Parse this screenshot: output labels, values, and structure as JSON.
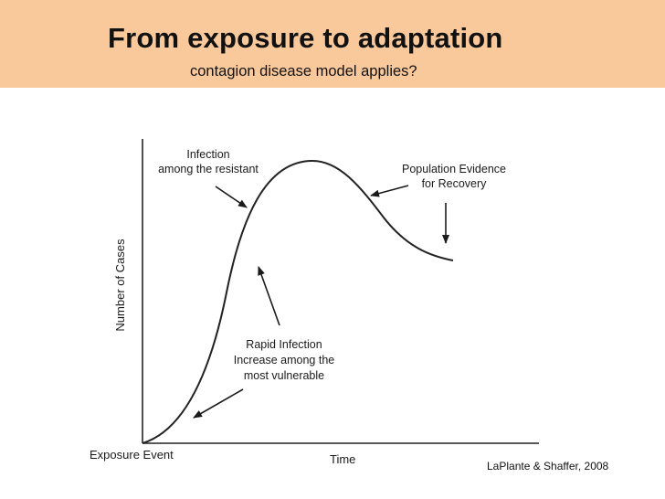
{
  "header": {
    "title": "From exposure to adaptation",
    "subtitle": "contagion disease model applies?",
    "background_color": "#f9c99b"
  },
  "diagram": {
    "y_axis_label": "Number of Cases",
    "x_axis_start_label": "Exposure Event",
    "x_axis_label": "Time",
    "annotations": {
      "infection_resistant": [
        "Infection",
        "among the resistant"
      ],
      "population_recovery": [
        "Population Evidence",
        "for Recovery"
      ],
      "rapid_infection": [
        "Rapid Infection",
        "Increase among the",
        "most vulnerable"
      ]
    },
    "curve_color": "#222222"
  },
  "citation": "LaPlante & Shaffer, 2008"
}
